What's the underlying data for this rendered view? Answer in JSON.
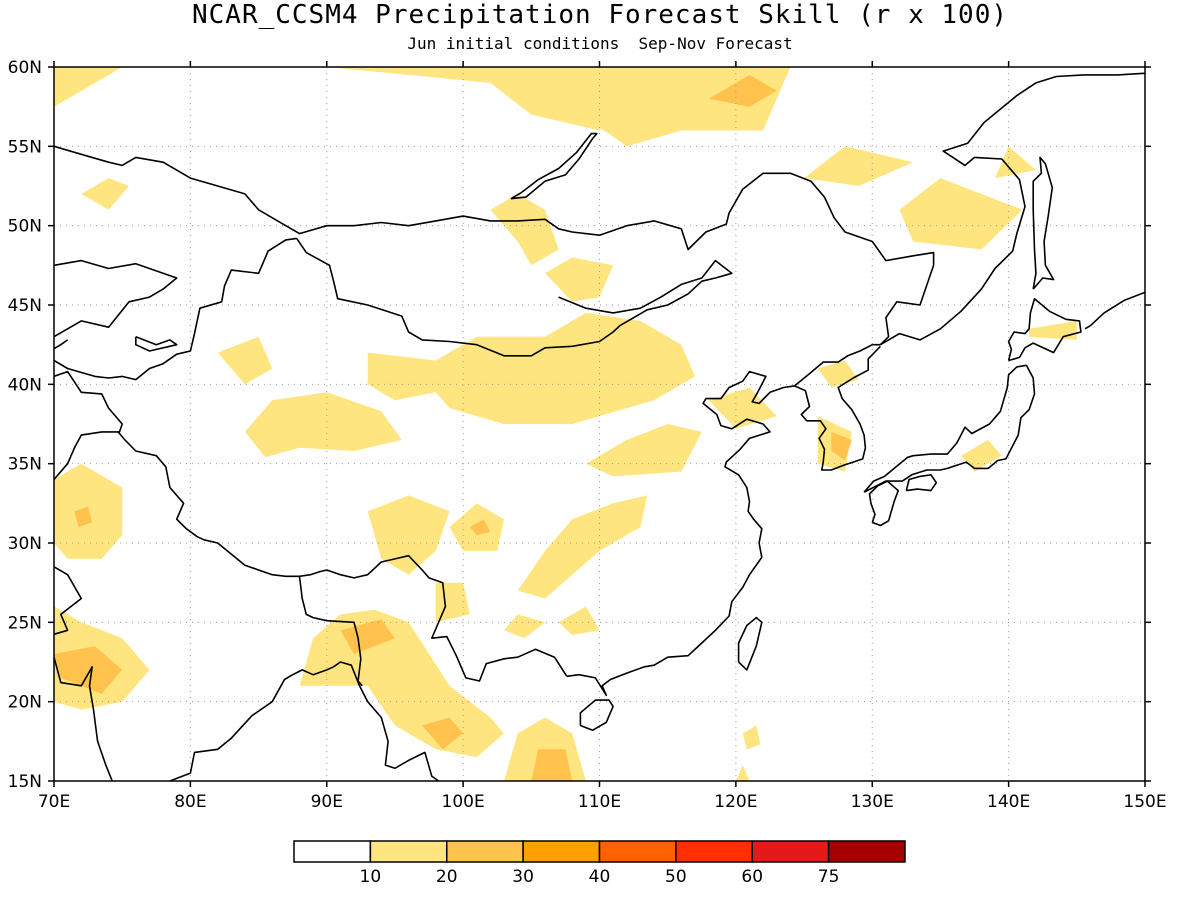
{
  "title": "NCAR_CCSM4 Precipitation Forecast Skill (r x 100)",
  "subtitle": "Jun initial conditions  Sep-Nov Forecast",
  "map": {
    "lon_range": [
      70,
      150
    ],
    "lat_range": [
      15,
      60
    ],
    "lon_ticks": [
      70,
      80,
      90,
      100,
      110,
      120,
      130,
      140,
      150
    ],
    "lon_labels": [
      "70E",
      "80E",
      "90E",
      "100E",
      "110E",
      "120E",
      "130E",
      "140E",
      "150E"
    ],
    "lat_ticks": [
      15,
      20,
      25,
      30,
      35,
      40,
      45,
      50,
      55,
      60
    ],
    "lat_labels": [
      "15N",
      "20N",
      "25N",
      "30N",
      "35N",
      "40N",
      "45N",
      "50N",
      "55N",
      "60N"
    ],
    "grid": "dotted",
    "skill_regions": [
      {
        "level": 1,
        "pts": [
          [
            70,
            57.5
          ],
          [
            75,
            60
          ],
          [
            70,
            60
          ]
        ]
      },
      {
        "level": 1,
        "pts": [
          [
            90,
            60
          ],
          [
            113,
            60
          ],
          [
            110,
            56
          ],
          [
            105,
            57
          ],
          [
            102,
            59
          ]
        ]
      },
      {
        "level": 1,
        "pts": [
          [
            107,
            58
          ],
          [
            112,
            60
          ],
          [
            124,
            60
          ],
          [
            122,
            56
          ],
          [
            116,
            56
          ],
          [
            112,
            55
          ]
        ]
      },
      {
        "level": 2,
        "pts": [
          [
            118,
            58
          ],
          [
            121,
            59.5
          ],
          [
            123,
            58.5
          ],
          [
            121,
            57.5
          ]
        ]
      },
      {
        "level": 1,
        "pts": [
          [
            125,
            53
          ],
          [
            128,
            55
          ],
          [
            133,
            54
          ],
          [
            129,
            52.5
          ]
        ]
      },
      {
        "level": 1,
        "pts": [
          [
            132,
            51
          ],
          [
            135,
            53
          ],
          [
            141,
            51
          ],
          [
            138,
            48.5
          ],
          [
            133,
            49
          ]
        ]
      },
      {
        "level": 1,
        "pts": [
          [
            139,
            53
          ],
          [
            140,
            55
          ],
          [
            142,
            53.5
          ]
        ]
      },
      {
        "level": 1,
        "pts": [
          [
            72,
            52
          ],
          [
            74,
            53
          ],
          [
            75.5,
            52.5
          ],
          [
            74,
            51
          ]
        ]
      },
      {
        "level": 1,
        "pts": [
          [
            102,
            51
          ],
          [
            104,
            49
          ],
          [
            105,
            47.5
          ],
          [
            107,
            48.5
          ],
          [
            106,
            51
          ],
          [
            104,
            52
          ]
        ]
      },
      {
        "level": 1,
        "pts": [
          [
            106,
            47
          ],
          [
            108,
            48
          ],
          [
            111,
            47.5
          ],
          [
            110,
            45.5
          ],
          [
            108,
            45.2
          ]
        ]
      },
      {
        "level": 1,
        "pts": [
          [
            93,
            42
          ],
          [
            98,
            41.5
          ],
          [
            101,
            43
          ],
          [
            106,
            43
          ],
          [
            109,
            44.5
          ],
          [
            113,
            44
          ],
          [
            116,
            42.5
          ],
          [
            117,
            40.5
          ],
          [
            114,
            39
          ],
          [
            108,
            37.5
          ],
          [
            103,
            37.5
          ],
          [
            99,
            38.5
          ],
          [
            98,
            39.5
          ],
          [
            95,
            39
          ],
          [
            93,
            40
          ]
        ]
      },
      {
        "level": 1,
        "pts": [
          [
            118,
            39
          ],
          [
            121,
            39.8
          ],
          [
            123,
            38
          ],
          [
            120,
            37.2
          ]
        ]
      },
      {
        "level": 1,
        "pts": [
          [
            126,
            41
          ],
          [
            128,
            41.5
          ],
          [
            129,
            40.3
          ],
          [
            127,
            39.8
          ]
        ]
      },
      {
        "level": 1,
        "pts": [
          [
            82,
            42
          ],
          [
            85,
            43
          ],
          [
            86,
            41
          ],
          [
            84,
            40
          ]
        ]
      },
      {
        "level": 1,
        "pts": [
          [
            84,
            37
          ],
          [
            86,
            39
          ],
          [
            90,
            39.5
          ],
          [
            94,
            38.3
          ],
          [
            95.5,
            36.5
          ],
          [
            92,
            35.8
          ],
          [
            88,
            36
          ],
          [
            85.5,
            35.4
          ]
        ]
      },
      {
        "level": 1,
        "pts": [
          [
            109,
            35
          ],
          [
            112,
            36.5
          ],
          [
            115,
            37.5
          ],
          [
            117.5,
            37
          ],
          [
            116,
            34.5
          ],
          [
            111,
            34.2
          ]
        ]
      },
      {
        "level": 1,
        "pts": [
          [
            126,
            38
          ],
          [
            128.5,
            37
          ],
          [
            128,
            34.5
          ],
          [
            126,
            35
          ]
        ]
      },
      {
        "level": 2,
        "pts": [
          [
            127,
            37
          ],
          [
            128.5,
            36.5
          ],
          [
            128,
            35.2
          ],
          [
            127,
            35.8
          ]
        ]
      },
      {
        "level": 1,
        "pts": [
          [
            136.5,
            35.5
          ],
          [
            138.5,
            36.5
          ],
          [
            139.5,
            35.5
          ],
          [
            137.5,
            34.5
          ]
        ]
      },
      {
        "level": 1,
        "pts": [
          [
            141.5,
            43.5
          ],
          [
            145,
            44
          ],
          [
            145,
            42.8
          ],
          [
            141.5,
            43
          ]
        ]
      },
      {
        "level": 1,
        "pts": [
          [
            70,
            34
          ],
          [
            72,
            35
          ],
          [
            75,
            33.5
          ],
          [
            75,
            30.5
          ],
          [
            73.5,
            29
          ],
          [
            71,
            29
          ],
          [
            70,
            30
          ]
        ]
      },
      {
        "level": 2,
        "pts": [
          [
            71.5,
            32
          ],
          [
            72.5,
            32.3
          ],
          [
            72.8,
            31.3
          ],
          [
            71.8,
            31
          ]
        ]
      },
      {
        "level": 1,
        "pts": [
          [
            70,
            26
          ],
          [
            72,
            25
          ],
          [
            75,
            24
          ],
          [
            77,
            22
          ],
          [
            75,
            20
          ],
          [
            72,
            19.5
          ],
          [
            70,
            20
          ]
        ]
      },
      {
        "level": 2,
        "pts": [
          [
            70,
            23
          ],
          [
            73,
            23.5
          ],
          [
            75,
            22
          ],
          [
            73.5,
            20.5
          ],
          [
            70.5,
            21.5
          ]
        ]
      },
      {
        "level": 1,
        "pts": [
          [
            93,
            32
          ],
          [
            96,
            33
          ],
          [
            99,
            32
          ],
          [
            98,
            29.5
          ],
          [
            96,
            28
          ],
          [
            94,
            29
          ]
        ]
      },
      {
        "level": 1,
        "pts": [
          [
            99,
            31
          ],
          [
            101,
            32.5
          ],
          [
            103,
            31.5
          ],
          [
            102.5,
            29.5
          ],
          [
            100,
            29.5
          ]
        ]
      },
      {
        "level": 2,
        "pts": [
          [
            100.5,
            31
          ],
          [
            101.5,
            31.5
          ],
          [
            102,
            30.7
          ],
          [
            101,
            30.5
          ]
        ]
      },
      {
        "level": 1,
        "pts": [
          [
            104,
            27
          ],
          [
            106,
            29.5
          ],
          [
            108,
            31.5
          ],
          [
            111,
            32.5
          ],
          [
            113.5,
            33
          ],
          [
            113,
            31
          ],
          [
            110,
            29.5
          ],
          [
            108,
            28
          ],
          [
            106,
            26.5
          ]
        ]
      },
      {
        "level": 1,
        "pts": [
          [
            98,
            25
          ],
          [
            98,
            27.5
          ],
          [
            100,
            27.5
          ],
          [
            100.5,
            25.5
          ]
        ]
      },
      {
        "level": 1,
        "pts": [
          [
            103,
            24.5
          ],
          [
            104,
            25.5
          ],
          [
            106,
            25
          ],
          [
            104.5,
            24
          ]
        ]
      },
      {
        "level": 1,
        "pts": [
          [
            107,
            25
          ],
          [
            109,
            26
          ],
          [
            110,
            24.5
          ],
          [
            108,
            24.2
          ]
        ]
      },
      {
        "level": 1,
        "pts": [
          [
            88,
            21
          ],
          [
            89,
            24
          ],
          [
            91,
            25.5
          ],
          [
            93.5,
            25.8
          ],
          [
            96,
            25
          ],
          [
            99,
            21
          ],
          [
            102,
            19
          ],
          [
            103,
            18
          ],
          [
            101,
            16.5
          ],
          [
            98,
            17
          ],
          [
            95,
            18.5
          ],
          [
            93,
            21
          ]
        ]
      },
      {
        "level": 2,
        "pts": [
          [
            91,
            24.5
          ],
          [
            94,
            25.2
          ],
          [
            95,
            24
          ],
          [
            92,
            23
          ]
        ]
      },
      {
        "level": 2,
        "pts": [
          [
            97,
            18.5
          ],
          [
            99,
            19
          ],
          [
            100,
            18
          ],
          [
            98.5,
            17
          ]
        ]
      },
      {
        "level": 1,
        "pts": [
          [
            103,
            15
          ],
          [
            104,
            18
          ],
          [
            106,
            19
          ],
          [
            108,
            18
          ],
          [
            109,
            15
          ]
        ]
      },
      {
        "level": 2,
        "pts": [
          [
            105,
            15
          ],
          [
            105.5,
            17
          ],
          [
            107.5,
            17
          ],
          [
            108,
            15
          ]
        ]
      },
      {
        "level": 1,
        "pts": [
          [
            120.5,
            18
          ],
          [
            121.5,
            18.5
          ],
          [
            121.8,
            17.3
          ],
          [
            120.8,
            17
          ]
        ]
      },
      {
        "level": 1,
        "pts": [
          [
            120,
            15
          ],
          [
            120.5,
            16
          ],
          [
            121,
            15
          ]
        ]
      }
    ]
  },
  "colorbar": {
    "colors": [
      "#ffffff",
      "#ffe580",
      "#ffc34d",
      "#ffa000",
      "#ff6000",
      "#ff3000",
      "#e31a1a",
      "#a50000"
    ],
    "labels": [
      "10",
      "20",
      "30",
      "40",
      "50",
      "60",
      "75"
    ]
  }
}
